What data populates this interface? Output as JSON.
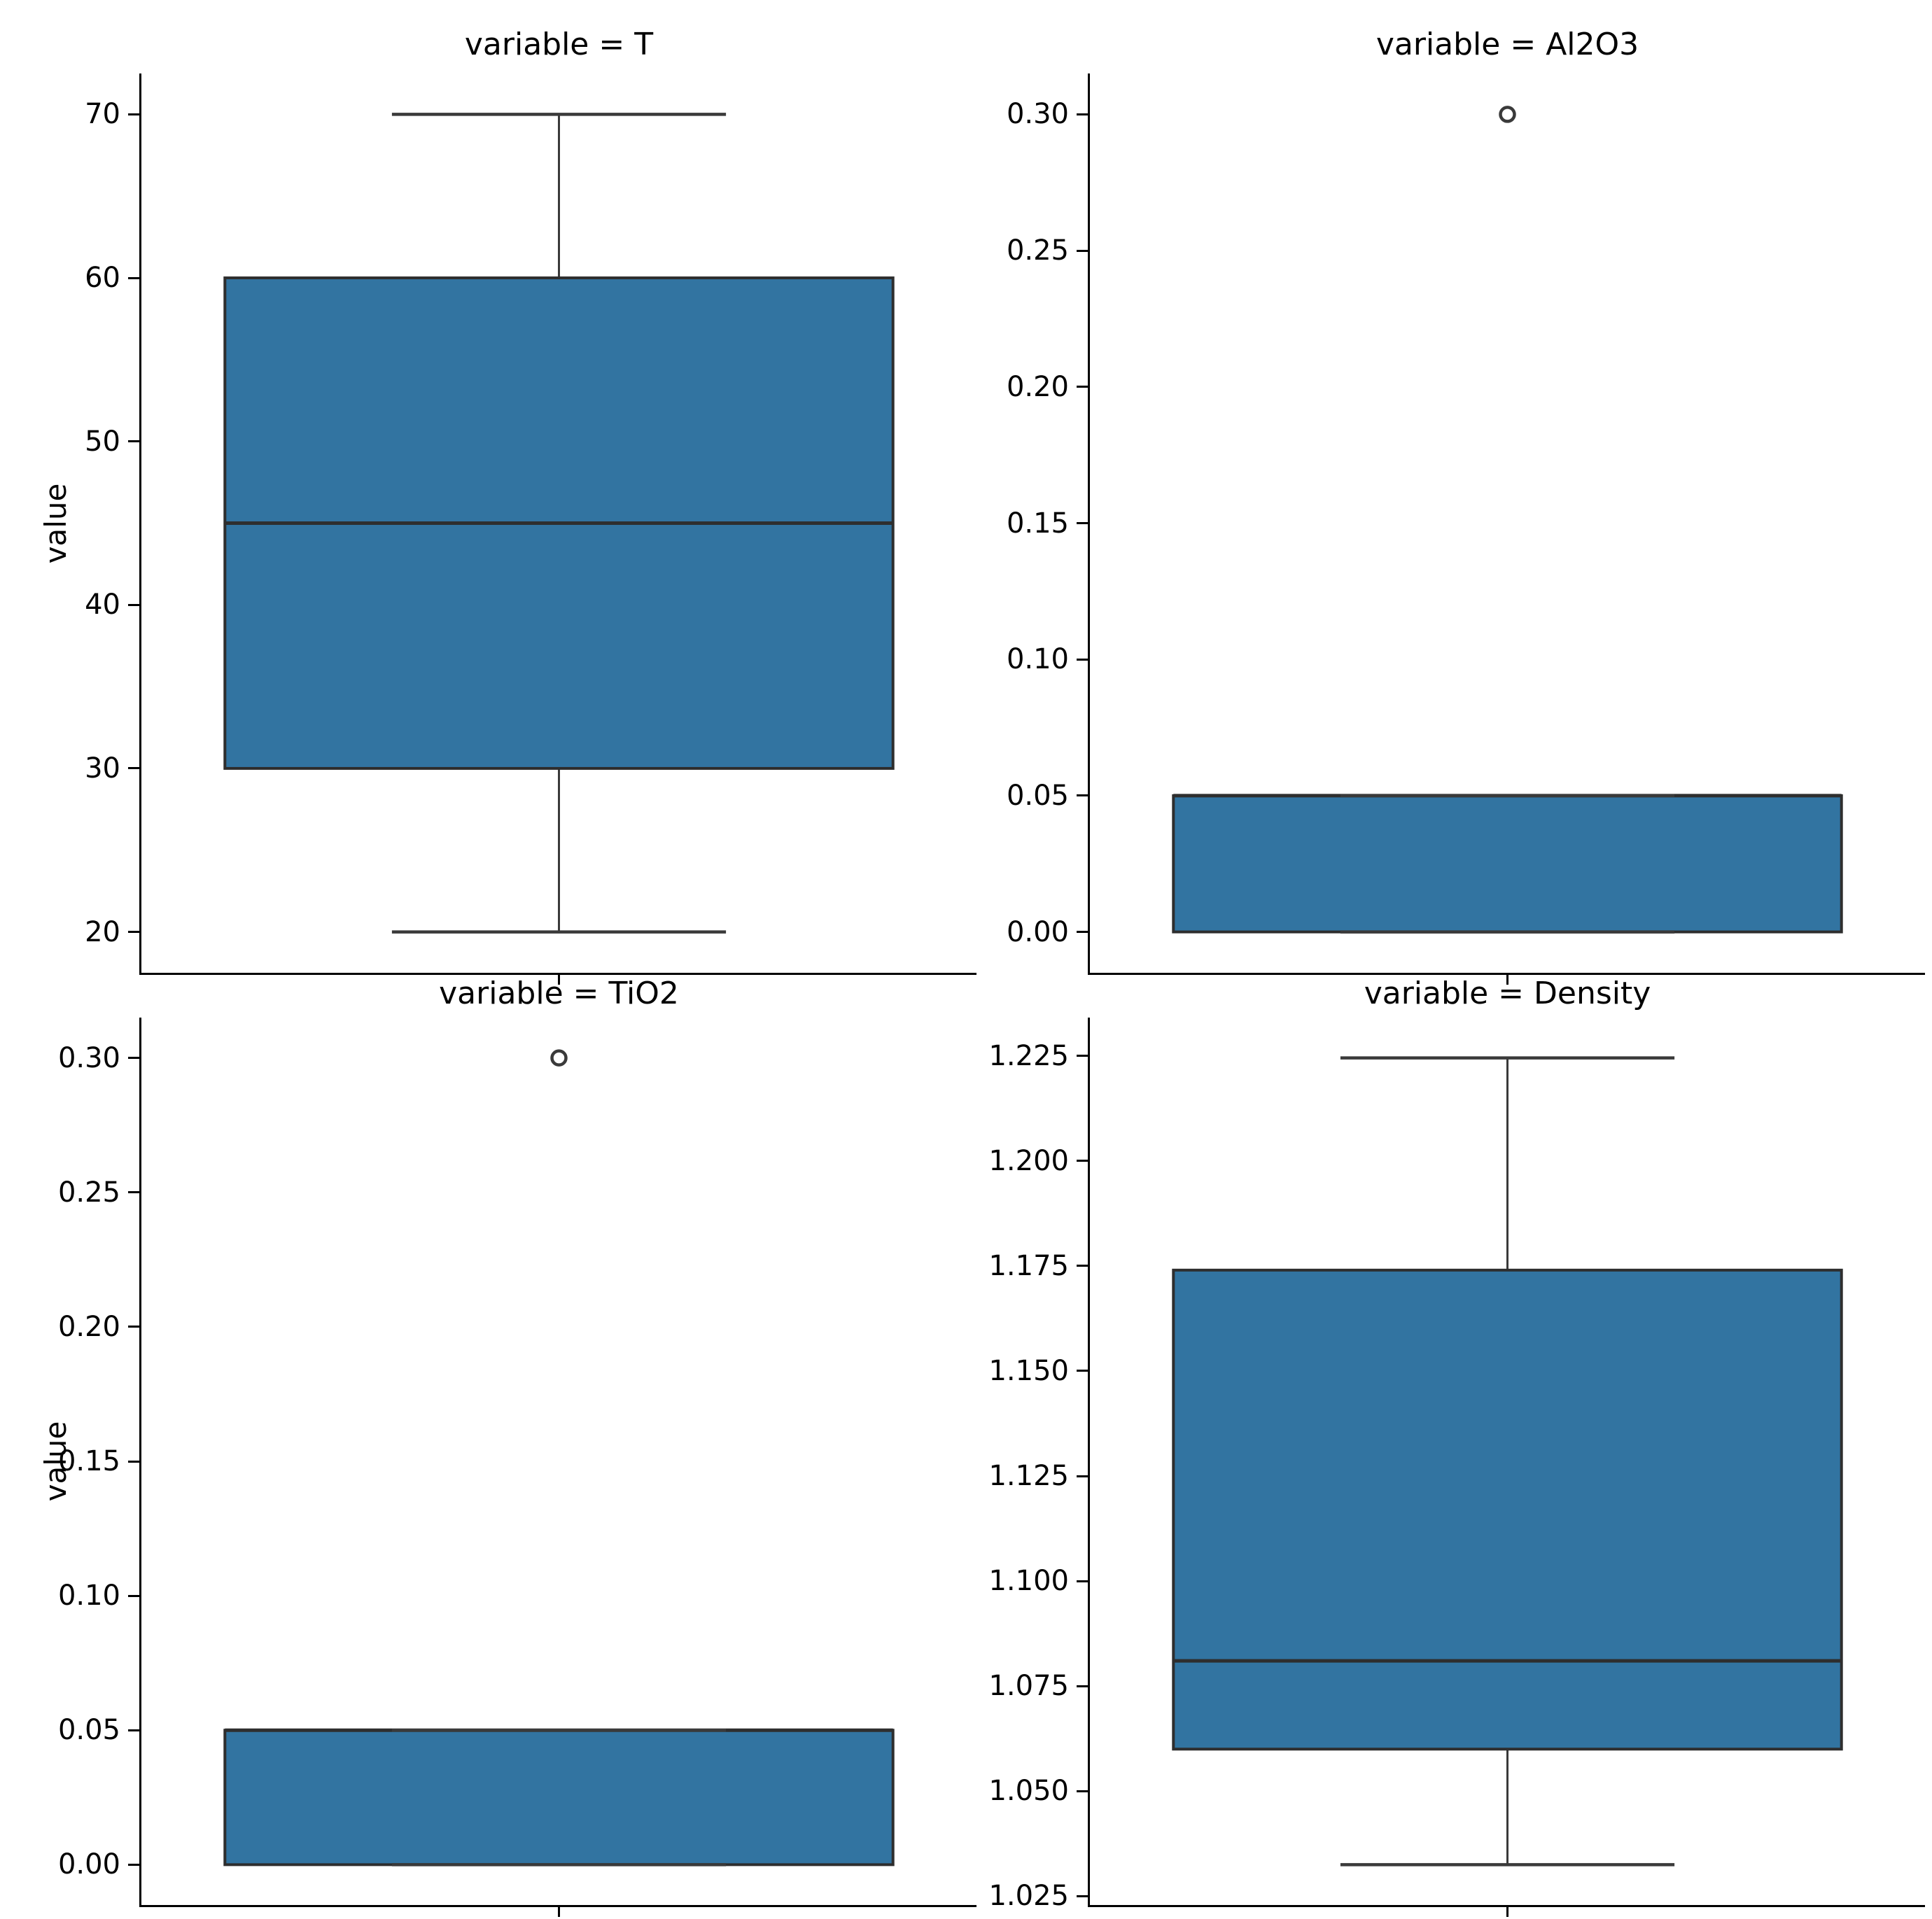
{
  "figure": {
    "ylabel": "value",
    "colors": {
      "box_fill": "#3274a1",
      "box_edge": "#2e2e2e",
      "median": "#2e2e2e",
      "whisker": "#3a3a3a",
      "spine": "#000000",
      "text": "#000000"
    }
  },
  "chart_data": [
    {
      "type": "box",
      "facet": "top-left",
      "title": "variable = T",
      "ylabel": "value",
      "ylim": [
        17.5,
        72.5
      ],
      "yticks": [
        70,
        60,
        50,
        40,
        30,
        20
      ],
      "ytick_decimals": 0,
      "stats": {
        "whisker_low": 20,
        "q1": 30,
        "median": 45,
        "q3": 60,
        "whisker_high": 70
      },
      "outliers": []
    },
    {
      "type": "box",
      "facet": "top-right",
      "title": "variable = Al2O3",
      "ylabel": null,
      "ylim": [
        -0.015,
        0.315
      ],
      "yticks": [
        0.3,
        0.25,
        0.2,
        0.15,
        0.1,
        0.05,
        0.0
      ],
      "ytick_decimals": 2,
      "stats": {
        "whisker_low": 0.0,
        "q1": 0.0,
        "median": 0.05,
        "q3": 0.05,
        "whisker_high": 0.05
      },
      "outliers": [
        0.3
      ]
    },
    {
      "type": "box",
      "facet": "bottom-left",
      "title": "variable = TiO2",
      "ylabel": "value",
      "ylim": [
        -0.015,
        0.315
      ],
      "yticks": [
        0.3,
        0.25,
        0.2,
        0.15,
        0.1,
        0.05,
        0.0
      ],
      "ytick_decimals": 2,
      "stats": {
        "whisker_low": 0.0,
        "q1": 0.0,
        "median": 0.05,
        "q3": 0.05,
        "whisker_high": 0.05
      },
      "outliers": [
        0.3
      ]
    },
    {
      "type": "box",
      "facet": "bottom-right",
      "title": "variable = Density",
      "ylabel": null,
      "ylim": [
        1.0229,
        1.2341
      ],
      "yticks": [
        1.225,
        1.2,
        1.175,
        1.15,
        1.125,
        1.1,
        1.075,
        1.05,
        1.025
      ],
      "ytick_decimals": 3,
      "stats": {
        "whisker_low": 1.0325,
        "q1": 1.06,
        "median": 1.081,
        "q3": 1.174,
        "whisker_high": 1.2245
      },
      "outliers": []
    }
  ]
}
